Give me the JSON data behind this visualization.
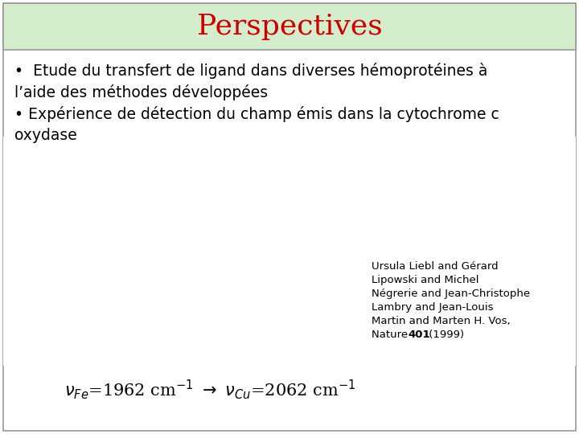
{
  "title": "Perspectives",
  "title_color": "#cc0000",
  "title_bg_color": "#d4edcc",
  "title_fontsize": 26,
  "bg_color": "#ffffff",
  "bullet1_line1": "•  Etude du transfert de ligand dans diverses hémoprotéines à",
  "bullet1_line2": "l’aide des méthodes développées",
  "bullet2_line1": "• Expérience de détection du champ émis dans la cytochrome c",
  "bullet2_line2": "oxydase",
  "ref_lines": [
    "Ursula Liebl and Gérard",
    "Lipowski and Michel",
    "Négrerie and Jean-Christophe",
    "Lambry and Jean-Louis",
    "Martin and Marten H. Vos,",
    "Nature  401 (1999)"
  ],
  "ref_bold_word": "401",
  "body_fontsize": 13.5,
  "ref_fontsize": 9.5,
  "formula_fontsize": 14,
  "outer_border_color": "#999999",
  "title_border_color": "#999999"
}
